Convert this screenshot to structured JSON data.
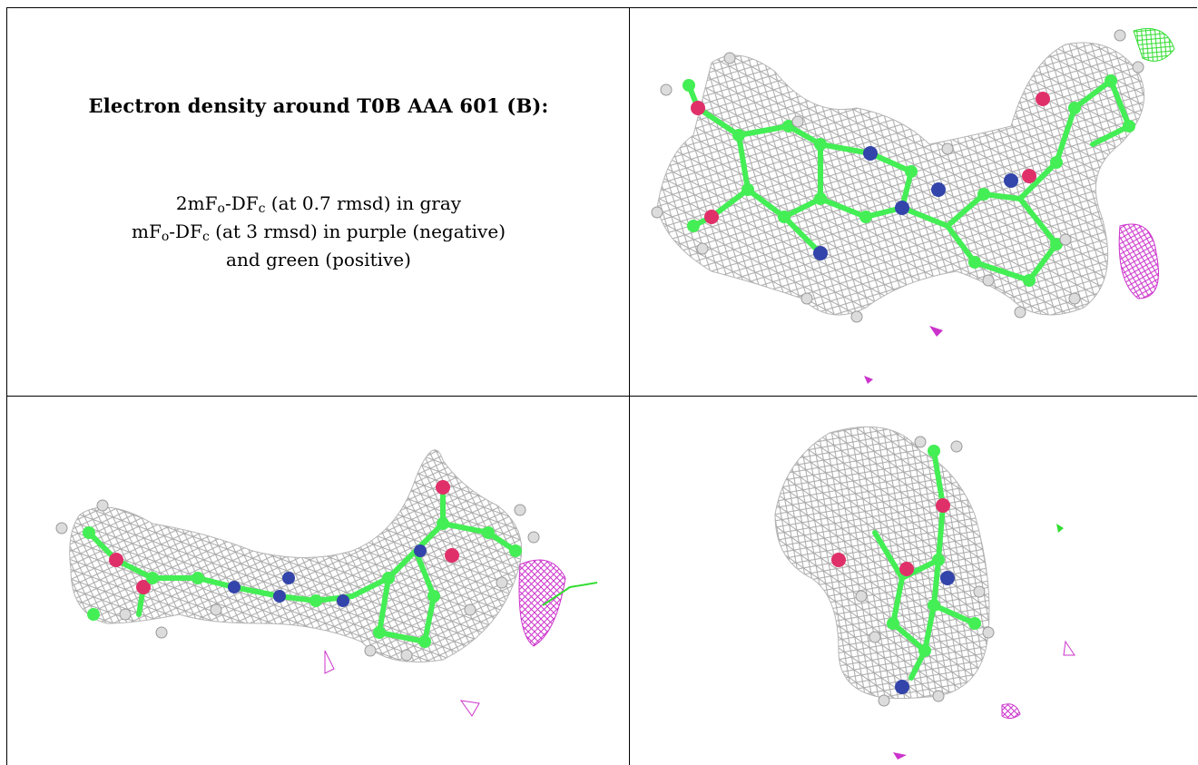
{
  "caption": {
    "title": "Electron density around T0B AAA 601 (B):",
    "legend_lines": [
      {
        "pre": "2mF",
        "sub1": "o",
        "mid": "-DF",
        "sub2": "c",
        "post": " (at 0.7 rmsd) in gray"
      },
      {
        "pre": "mF",
        "sub1": "o",
        "mid": "-DF",
        "sub2": "c",
        "post": " (at 3 rmsd) in purple (negative)"
      },
      {
        "pre": "",
        "sub1": "",
        "mid": "",
        "sub2": "",
        "post": "and green (positive)"
      }
    ]
  },
  "colors": {
    "mesh_2fofc": "#a9a9a9",
    "mesh_negative": "#cc33cc",
    "mesh_positive": "#33dd33",
    "carbon": "#44ee55",
    "nitrogen": "#3344aa",
    "oxygen": "#e0306a",
    "hydrogen": "#dcdcdc"
  },
  "panels": [
    {
      "view": "top-view",
      "image": "density-view-1"
    },
    {
      "view": "side-view",
      "image": "density-view-2"
    },
    {
      "view": "end-view",
      "image": "density-view-3"
    }
  ]
}
